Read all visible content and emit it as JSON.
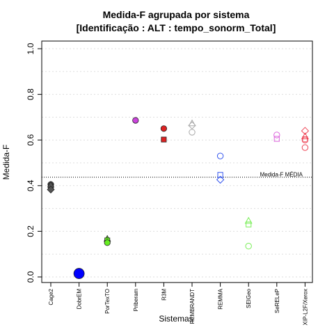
{
  "chart_data": {
    "type": "scatter",
    "title": "Medida-F agrupada por sistema",
    "subtitle": "[Identificação : ALT : tempo_sonorm_Total]",
    "xlabel": "Sistemas",
    "ylabel": "Medida-F",
    "ylim": [
      0,
      1
    ],
    "yticks": [
      "0.0",
      "0.2",
      "0.4",
      "0.6",
      "0.8",
      "1.0"
    ],
    "grid": true,
    "categories": [
      "Cage2",
      "DobrEM",
      "PorTexTO",
      "Priberam",
      "R3M",
      "REMBRANDT",
      "REMMA",
      "SEIGeo",
      "SeRELeP",
      "XIP-L2F/Xerox"
    ],
    "colors": [
      "#555555",
      "#0000ff",
      "#66ee22",
      "#cc44dd",
      "#dd2222",
      "#aaaaaa",
      "#3355ee",
      "#77ee55",
      "#dd66dd",
      "#ee4455"
    ],
    "points": [
      {
        "category": "Cage2",
        "y": 0.405,
        "shape": "circle",
        "filled": true,
        "size": 1
      },
      {
        "category": "Cage2",
        "y": 0.398,
        "shape": "square",
        "filled": true,
        "size": 1
      },
      {
        "category": "Cage2",
        "y": 0.403,
        "shape": "triangle",
        "filled": true,
        "size": 1
      },
      {
        "category": "Cage2",
        "y": 0.383,
        "shape": "diamond",
        "filled": true,
        "size": 1
      },
      {
        "category": "DobrEM",
        "y": 0.015,
        "shape": "circle",
        "filled": true,
        "size": 2
      },
      {
        "category": "PorTexTO",
        "y": 0.166,
        "shape": "triangle",
        "filled": true,
        "size": 1
      },
      {
        "category": "PorTexTO",
        "y": 0.16,
        "shape": "square",
        "filled": true,
        "size": 1
      },
      {
        "category": "PorTexTO",
        "y": 0.15,
        "shape": "circle",
        "filled": true,
        "size": 1
      },
      {
        "category": "Priberam",
        "y": 0.686,
        "shape": "circle",
        "filled": true,
        "size": 1
      },
      {
        "category": "R3M",
        "y": 0.65,
        "shape": "circle",
        "filled": true,
        "size": 1
      },
      {
        "category": "R3M",
        "y": 0.602,
        "shape": "square",
        "filled": true,
        "size": 1
      },
      {
        "category": "REMBRANDT",
        "y": 0.672,
        "shape": "triangle",
        "filled": false,
        "size": 1
      },
      {
        "category": "REMBRANDT",
        "y": 0.664,
        "shape": "diamond",
        "filled": false,
        "size": 1
      },
      {
        "category": "REMBRANDT",
        "y": 0.634,
        "shape": "circle",
        "filled": false,
        "size": 1
      },
      {
        "category": "REMMA",
        "y": 0.53,
        "shape": "circle",
        "filled": false,
        "size": 1
      },
      {
        "category": "REMMA",
        "y": 0.447,
        "shape": "square",
        "filled": false,
        "size": 1
      },
      {
        "category": "REMMA",
        "y": 0.426,
        "shape": "diamond",
        "filled": false,
        "size": 1
      },
      {
        "category": "SEIGeo",
        "y": 0.245,
        "shape": "triangle",
        "filled": false,
        "size": 1
      },
      {
        "category": "SEIGeo",
        "y": 0.23,
        "shape": "square",
        "filled": false,
        "size": 1
      },
      {
        "category": "SEIGeo",
        "y": 0.135,
        "shape": "circle",
        "filled": false,
        "size": 1
      },
      {
        "category": "SeRELeP",
        "y": 0.622,
        "shape": "circle",
        "filled": false,
        "size": 1
      },
      {
        "category": "SeRELeP",
        "y": 0.605,
        "shape": "square",
        "filled": false,
        "size": 1
      },
      {
        "category": "XIP-L2F/Xerox",
        "y": 0.64,
        "shape": "diamond",
        "filled": false,
        "size": 1
      },
      {
        "category": "XIP-L2F/Xerox",
        "y": 0.615,
        "shape": "triangle",
        "filled": false,
        "size": 1
      },
      {
        "category": "XIP-L2F/Xerox",
        "y": 0.603,
        "shape": "square",
        "filled": false,
        "size": 1
      },
      {
        "category": "XIP-L2F/Xerox",
        "y": 0.6,
        "shape": "circle",
        "filled": false,
        "size": 1
      },
      {
        "category": "XIP-L2F/Xerox",
        "y": 0.567,
        "shape": "circle",
        "filled": false,
        "size": 1
      }
    ],
    "reference_line": {
      "y": 0.437,
      "label": "Medida-F MÉDIA"
    }
  }
}
